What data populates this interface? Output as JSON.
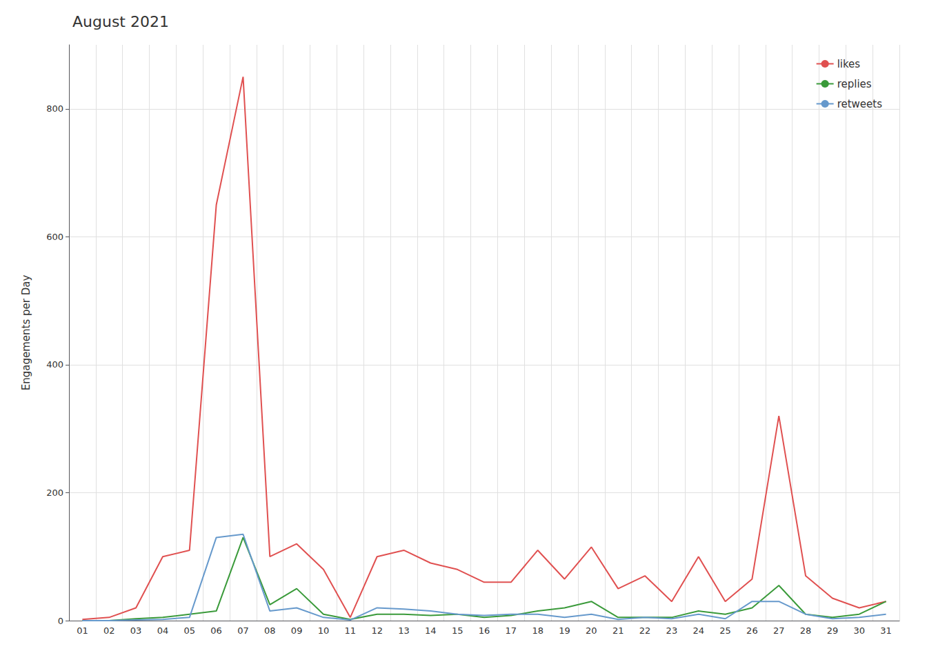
{
  "chart_data": {
    "type": "line",
    "title": "August 2021",
    "ylabel": "Engagements per Day",
    "categories": [
      "01",
      "02",
      "03",
      "04",
      "05",
      "06",
      "07",
      "08",
      "09",
      "10",
      "11",
      "12",
      "13",
      "14",
      "15",
      "16",
      "17",
      "18",
      "19",
      "20",
      "21",
      "22",
      "23",
      "24",
      "25",
      "26",
      "27",
      "28",
      "29",
      "30",
      "31"
    ],
    "series": [
      {
        "name": "likes",
        "color": "#e05050",
        "values": [
          2,
          5,
          20,
          100,
          110,
          650,
          850,
          100,
          120,
          80,
          5,
          100,
          110,
          90,
          80,
          60,
          60,
          110,
          65,
          115,
          50,
          70,
          30,
          100,
          30,
          65,
          320,
          70,
          35,
          20,
          30
        ]
      },
      {
        "name": "replies",
        "color": "#3a9a3a",
        "values": [
          0,
          0,
          3,
          5,
          10,
          15,
          130,
          25,
          50,
          10,
          2,
          10,
          10,
          8,
          10,
          5,
          8,
          15,
          20,
          30,
          5,
          5,
          5,
          15,
          10,
          20,
          55,
          10,
          5,
          10,
          30
        ]
      },
      {
        "name": "retweets",
        "color": "#6699cc",
        "values": [
          0,
          0,
          1,
          2,
          5,
          130,
          135,
          15,
          20,
          5,
          1,
          20,
          18,
          15,
          10,
          8,
          10,
          10,
          5,
          10,
          2,
          5,
          3,
          10,
          3,
          30,
          30,
          10,
          3,
          5,
          10
        ]
      }
    ],
    "ylim": [
      0,
      900
    ],
    "yticks": [
      0,
      200,
      400,
      600,
      800
    ],
    "grid": true,
    "legend": "upper right"
  }
}
